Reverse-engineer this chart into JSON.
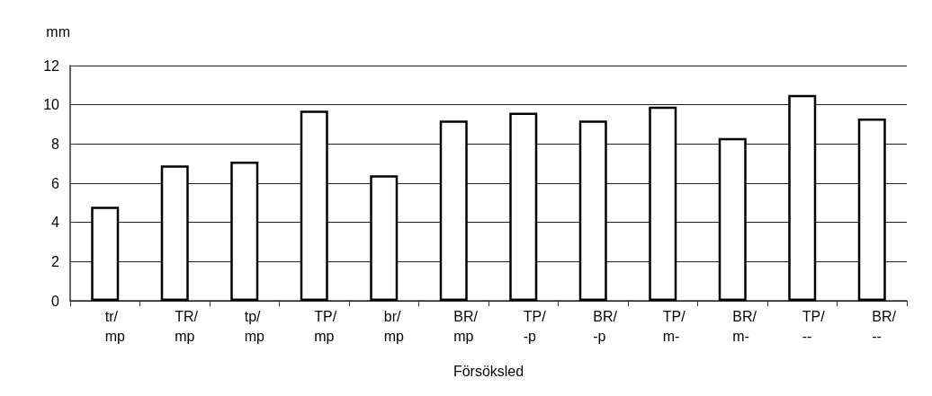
{
  "chart_data": {
    "type": "bar",
    "ylabel": "mm",
    "xlabel": "Försöksled",
    "categories": [
      "tr/\nmp",
      "TR/\nmp",
      "tp/\nmp",
      "TP/\nmp",
      "br/\nmp",
      "BR/\nmp",
      "TP/\n-p",
      "BR/\n-p",
      "TP/\nm-",
      "BR/\nm-",
      "TP/\n--",
      "BR/\n--"
    ],
    "values": [
      4.8,
      6.9,
      7.1,
      9.7,
      6.4,
      9.2,
      9.6,
      9.2,
      9.9,
      8.3,
      10.5,
      9.3
    ],
    "color": "#ffffff",
    "ylim": [
      0,
      12
    ],
    "yticks": [
      0,
      2,
      4,
      6,
      8,
      10,
      12
    ],
    "grid": "y"
  }
}
